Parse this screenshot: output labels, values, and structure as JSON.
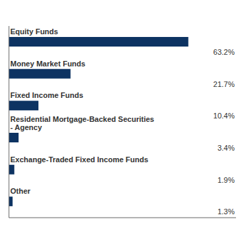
{
  "chart_data": {
    "type": "bar",
    "orientation": "horizontal",
    "categories": [
      "Equity Funds",
      "Money Market Funds",
      "Fixed Income Funds",
      "Residential Mortgage-Backed Securities\n- Agency",
      "Exchange-Traded Fixed Income Funds",
      "Other"
    ],
    "values": [
      63.2,
      21.7,
      10.4,
      3.4,
      1.9,
      1.3
    ],
    "value_labels": [
      "63.2%",
      "21.7%",
      "10.4%",
      "3.4%",
      "1.9%",
      "1.3%"
    ],
    "data_labels": true,
    "color": "#0d3362",
    "xlim": [
      0,
      80
    ],
    "tick_labels": false
  }
}
